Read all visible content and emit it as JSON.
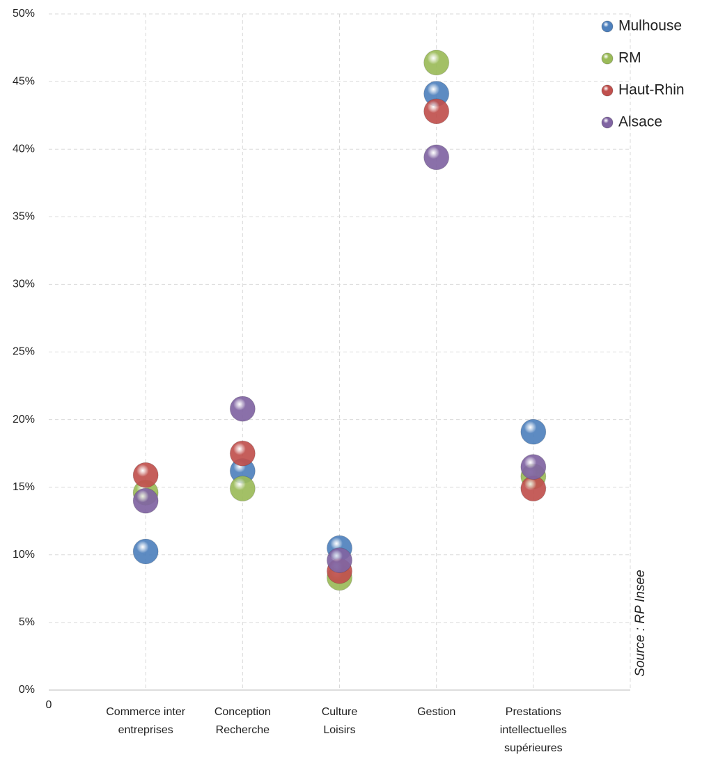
{
  "chart_data": {
    "type": "dotplot",
    "categories": [
      [
        "Commerce inter",
        "entreprises"
      ],
      [
        "Conception",
        "Recherche"
      ],
      [
        "Culture",
        "Loisirs"
      ],
      [
        "Gestion"
      ],
      [
        "Prestations",
        "intellectuelles",
        "supérieures"
      ]
    ],
    "x": [
      1,
      2,
      3,
      4,
      5
    ],
    "xlim": [
      0,
      6
    ],
    "xticks": [
      0
    ],
    "ylim": [
      0,
      50
    ],
    "yticks": [
      {
        "value": 0,
        "label": "0%"
      },
      {
        "value": 5,
        "label": "5%"
      },
      {
        "value": 10,
        "label": "10%"
      },
      {
        "value": 15,
        "label": "15%"
      },
      {
        "value": 20,
        "label": "20%"
      },
      {
        "value": 25,
        "label": "25%"
      },
      {
        "value": 30,
        "label": "30%"
      },
      {
        "value": 35,
        "label": "35%"
      },
      {
        "value": 40,
        "label": "40%"
      },
      {
        "value": 45,
        "label": "45%"
      },
      {
        "value": 50,
        "label": "50%"
      }
    ],
    "grid": true,
    "legend": "top-right",
    "source": "Source : RP Insee",
    "series": [
      {
        "name": "Mulhouse",
        "color": "#4f81bd",
        "values": [
          10.25,
          16.2,
          10.5,
          44.1,
          19.1
        ]
      },
      {
        "name": "RM",
        "color": "#9bbb59",
        "values": [
          14.6,
          14.9,
          8.3,
          46.4,
          15.8
        ]
      },
      {
        "name": "Haut-Rhin",
        "color": "#c0504d",
        "values": [
          15.9,
          17.5,
          8.8,
          42.8,
          14.9
        ]
      },
      {
        "name": "Alsace",
        "color": "#8064a2",
        "values": [
          14.0,
          20.8,
          9.6,
          39.4,
          16.5
        ]
      }
    ]
  }
}
